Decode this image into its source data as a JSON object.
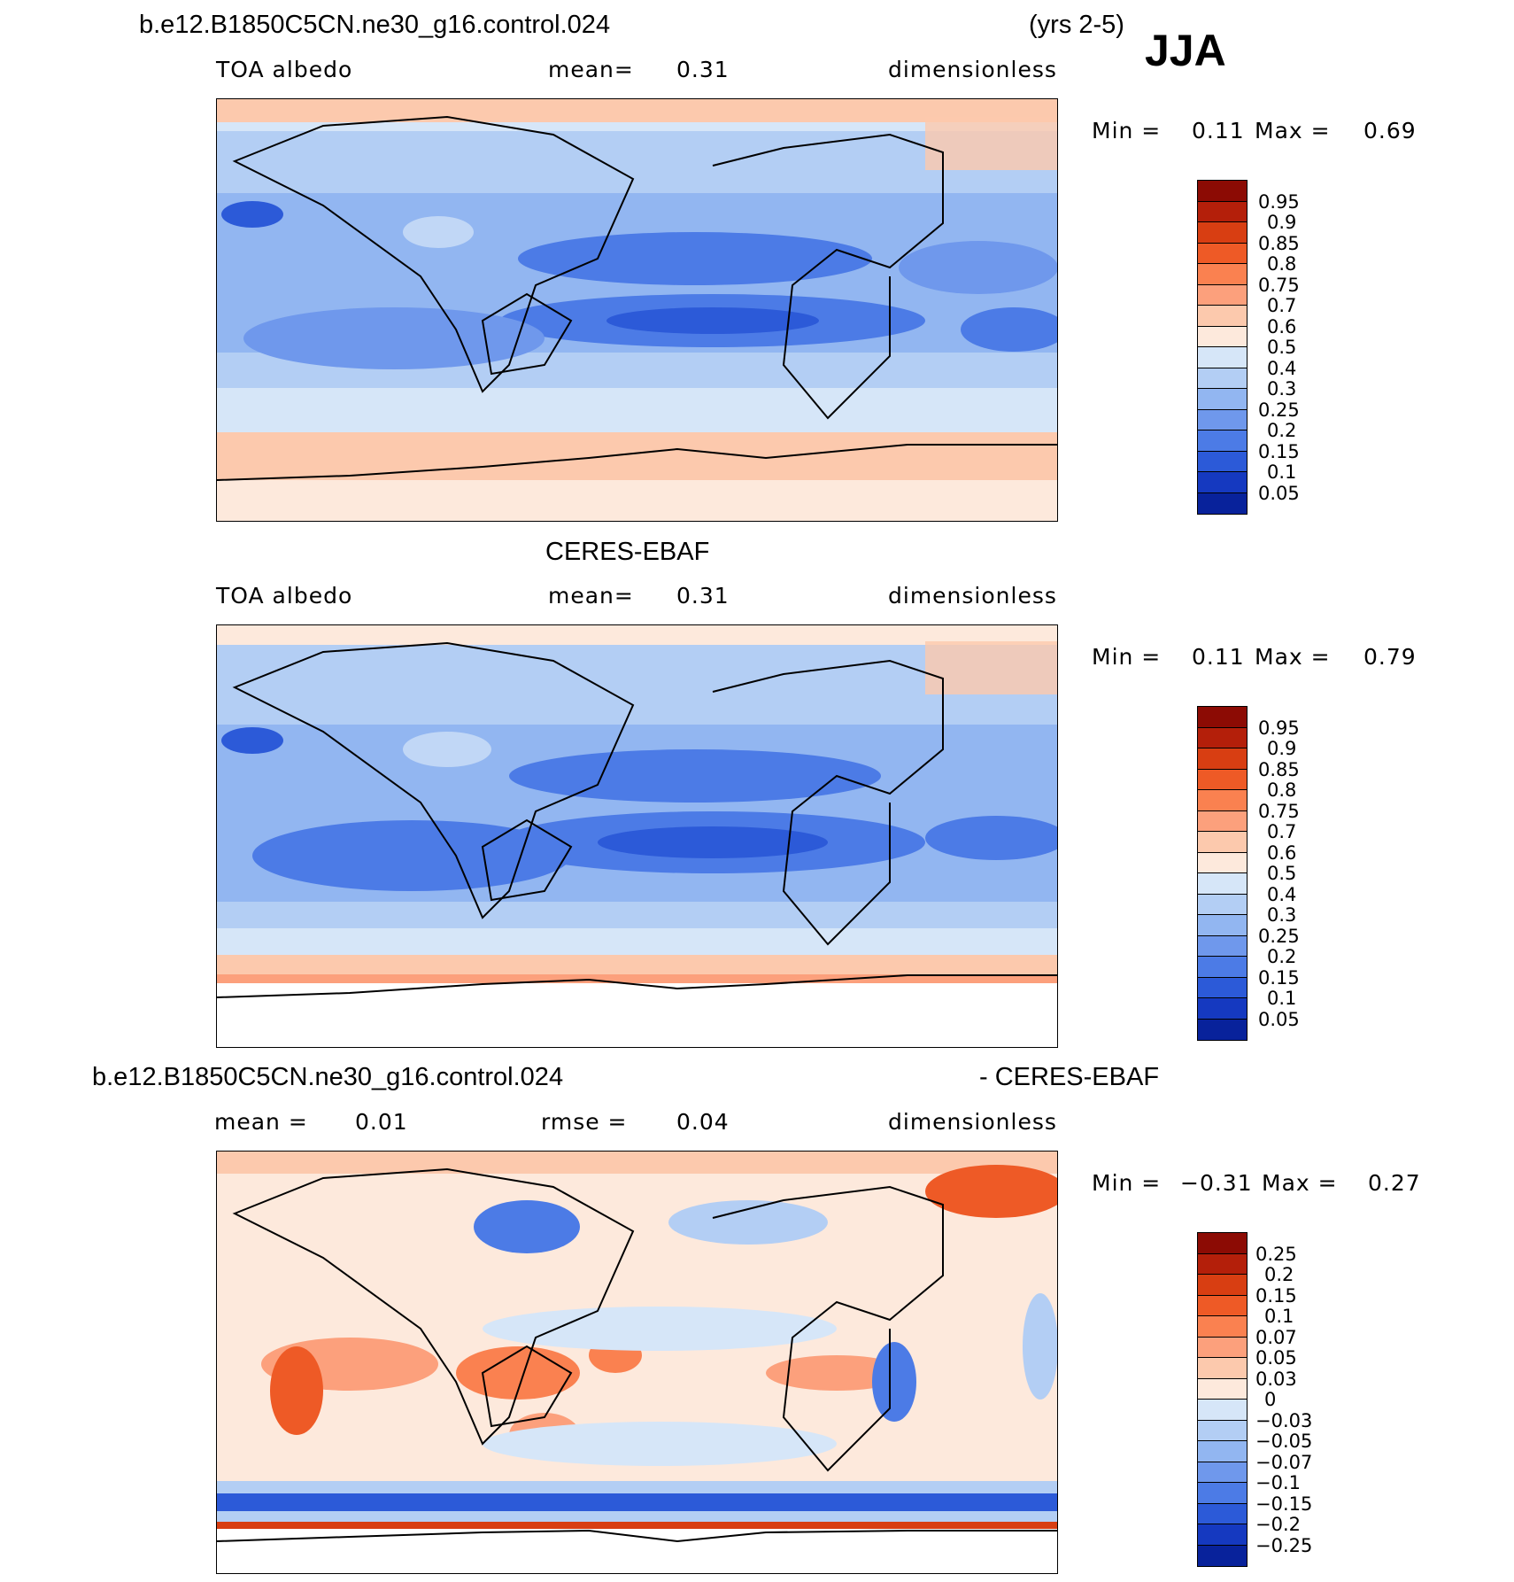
{
  "header": {
    "case": "b.e12.B1850C5CN.ne30_g16.control.024",
    "years": "(yrs 2-5)",
    "season": "JJA"
  },
  "panel1": {
    "variable": "TOA albedo",
    "mean_label": "mean=",
    "mean_value": "0.31",
    "units": "dimensionless",
    "min_label": "Min =",
    "min_value": "0.11",
    "max_label": "Max =",
    "max_value": "0.69"
  },
  "panel2": {
    "title": "CERES-EBAF",
    "variable": "TOA albedo",
    "mean_label": "mean=",
    "mean_value": "0.31",
    "units": "dimensionless",
    "min_label": "Min =",
    "min_value": "0.11",
    "max_label": "Max =",
    "max_value": "0.79"
  },
  "panel3": {
    "title_left": "b.e12.B1850C5CN.ne30_g16.control.024",
    "title_right": "- CERES-EBAF",
    "mean_label": "mean =",
    "mean_value": "0.01",
    "rmse_label": "rmse =",
    "rmse_value": "0.04",
    "units": "dimensionless",
    "min_label": "Min =",
    "min_value": "−0.31",
    "max_label": "Max =",
    "max_value": "0.27"
  },
  "chart_data": [
    {
      "type": "heatmap",
      "title": "b.e12.B1850C5CN.ne30_g16.control.024 (yrs 2-5) JJA",
      "variable": "TOA albedo",
      "units": "dimensionless",
      "mean": 0.31,
      "min": 0.11,
      "max": 0.69,
      "colorbar_levels": [
        "0.95",
        "0.9",
        "0.85",
        "0.8",
        "0.75",
        "0.7",
        "0.6",
        "0.5",
        "0.4",
        "0.3",
        "0.25",
        "0.2",
        "0.15",
        "0.1",
        "0.05"
      ],
      "colorbar_colors": [
        "#8c0b04",
        "#b41f0a",
        "#d83e12",
        "#ee5a26",
        "#fa8150",
        "#fca07c",
        "#fcc9ad",
        "#fde9dc",
        "#d6e6f8",
        "#b3cef4",
        "#92b6f1",
        "#6f98ec",
        "#4c7be6",
        "#2c5ad8",
        "#1539c0",
        "#08229b"
      ]
    },
    {
      "type": "heatmap",
      "title": "CERES-EBAF",
      "variable": "TOA albedo",
      "units": "dimensionless",
      "mean": 0.31,
      "min": 0.11,
      "max": 0.79,
      "colorbar_levels": [
        "0.95",
        "0.9",
        "0.85",
        "0.8",
        "0.75",
        "0.7",
        "0.6",
        "0.5",
        "0.4",
        "0.3",
        "0.25",
        "0.2",
        "0.15",
        "0.1",
        "0.05"
      ],
      "colorbar_colors": [
        "#8c0b04",
        "#b41f0a",
        "#d83e12",
        "#ee5a26",
        "#fa8150",
        "#fca07c",
        "#fcc9ad",
        "#fde9dc",
        "#d6e6f8",
        "#b3cef4",
        "#92b6f1",
        "#6f98ec",
        "#4c7be6",
        "#2c5ad8",
        "#1539c0",
        "#08229b"
      ]
    },
    {
      "type": "heatmap",
      "title": "b.e12.B1850C5CN.ne30_g16.control.024 - CERES-EBAF",
      "units": "dimensionless",
      "mean": 0.01,
      "rmse": 0.04,
      "min": -0.31,
      "max": 0.27,
      "colorbar_levels": [
        "0.25",
        "0.2",
        "0.15",
        "0.1",
        "0.07",
        "0.05",
        "0.03",
        "0",
        "−0.03",
        "−0.05",
        "−0.07",
        "−0.1",
        "−0.15",
        "−0.2",
        "−0.25"
      ],
      "colorbar_colors": [
        "#8c0b04",
        "#b41f0a",
        "#d83e12",
        "#ee5a26",
        "#fa8150",
        "#fca07c",
        "#fcc9ad",
        "#fde9dc",
        "#d6e6f8",
        "#b3cef4",
        "#92b6f1",
        "#6f98ec",
        "#4c7be6",
        "#2c5ad8",
        "#1539c0",
        "#08229b"
      ]
    }
  ]
}
